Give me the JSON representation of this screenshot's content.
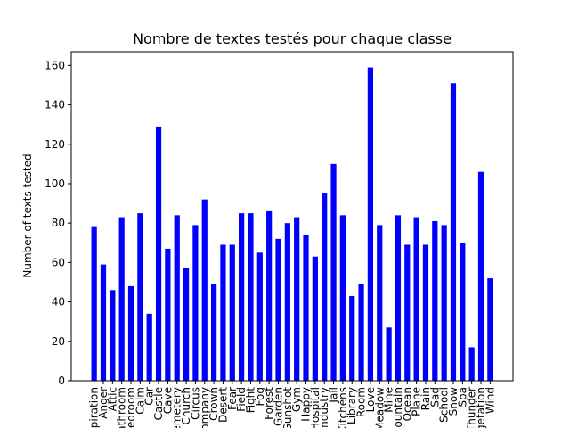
{
  "chart_data": {
    "type": "bar",
    "title": "Nombre de textes testés pour chaque classe",
    "xlabel": "",
    "ylabel": "Number of texts tested",
    "ylim": [
      0,
      166.95
    ],
    "yticks": [
      0,
      20,
      40,
      60,
      80,
      100,
      120,
      140,
      160
    ],
    "bar_color": "#0000ff",
    "grid": false,
    "categories": [
      "Aspiration",
      "Anger",
      "Attic",
      "Bathroom",
      "Bedroom",
      "Calm",
      "Car",
      "Castle",
      "Cave",
      "Cemetery",
      "Church",
      "Circus",
      "Company",
      "Crown",
      "Desert",
      "Fear",
      "Field",
      "Fight",
      "Fog",
      "Forest",
      "Garden",
      "Gunshot",
      "Gym",
      "Happy",
      "Hospital",
      "Industry",
      "Jail",
      "Kitchens",
      "Library",
      "Room",
      "Love",
      "Meadow",
      "Mine",
      "Mountain",
      "Ocean",
      "Plane",
      "Rain",
      "Sad",
      "School",
      "Snow",
      "Spa",
      "Thunder",
      "Vegetation",
      "Wind"
    ],
    "values": [
      78,
      59,
      46,
      83,
      48,
      85,
      34,
      129,
      67,
      84,
      57,
      79,
      92,
      49,
      69,
      69,
      85,
      85,
      65,
      86,
      72,
      80,
      83,
      74,
      63,
      95,
      110,
      84,
      43,
      49,
      159,
      79,
      27,
      84,
      69,
      83,
      69,
      81,
      79,
      151,
      70,
      17,
      106,
      52
    ]
  }
}
